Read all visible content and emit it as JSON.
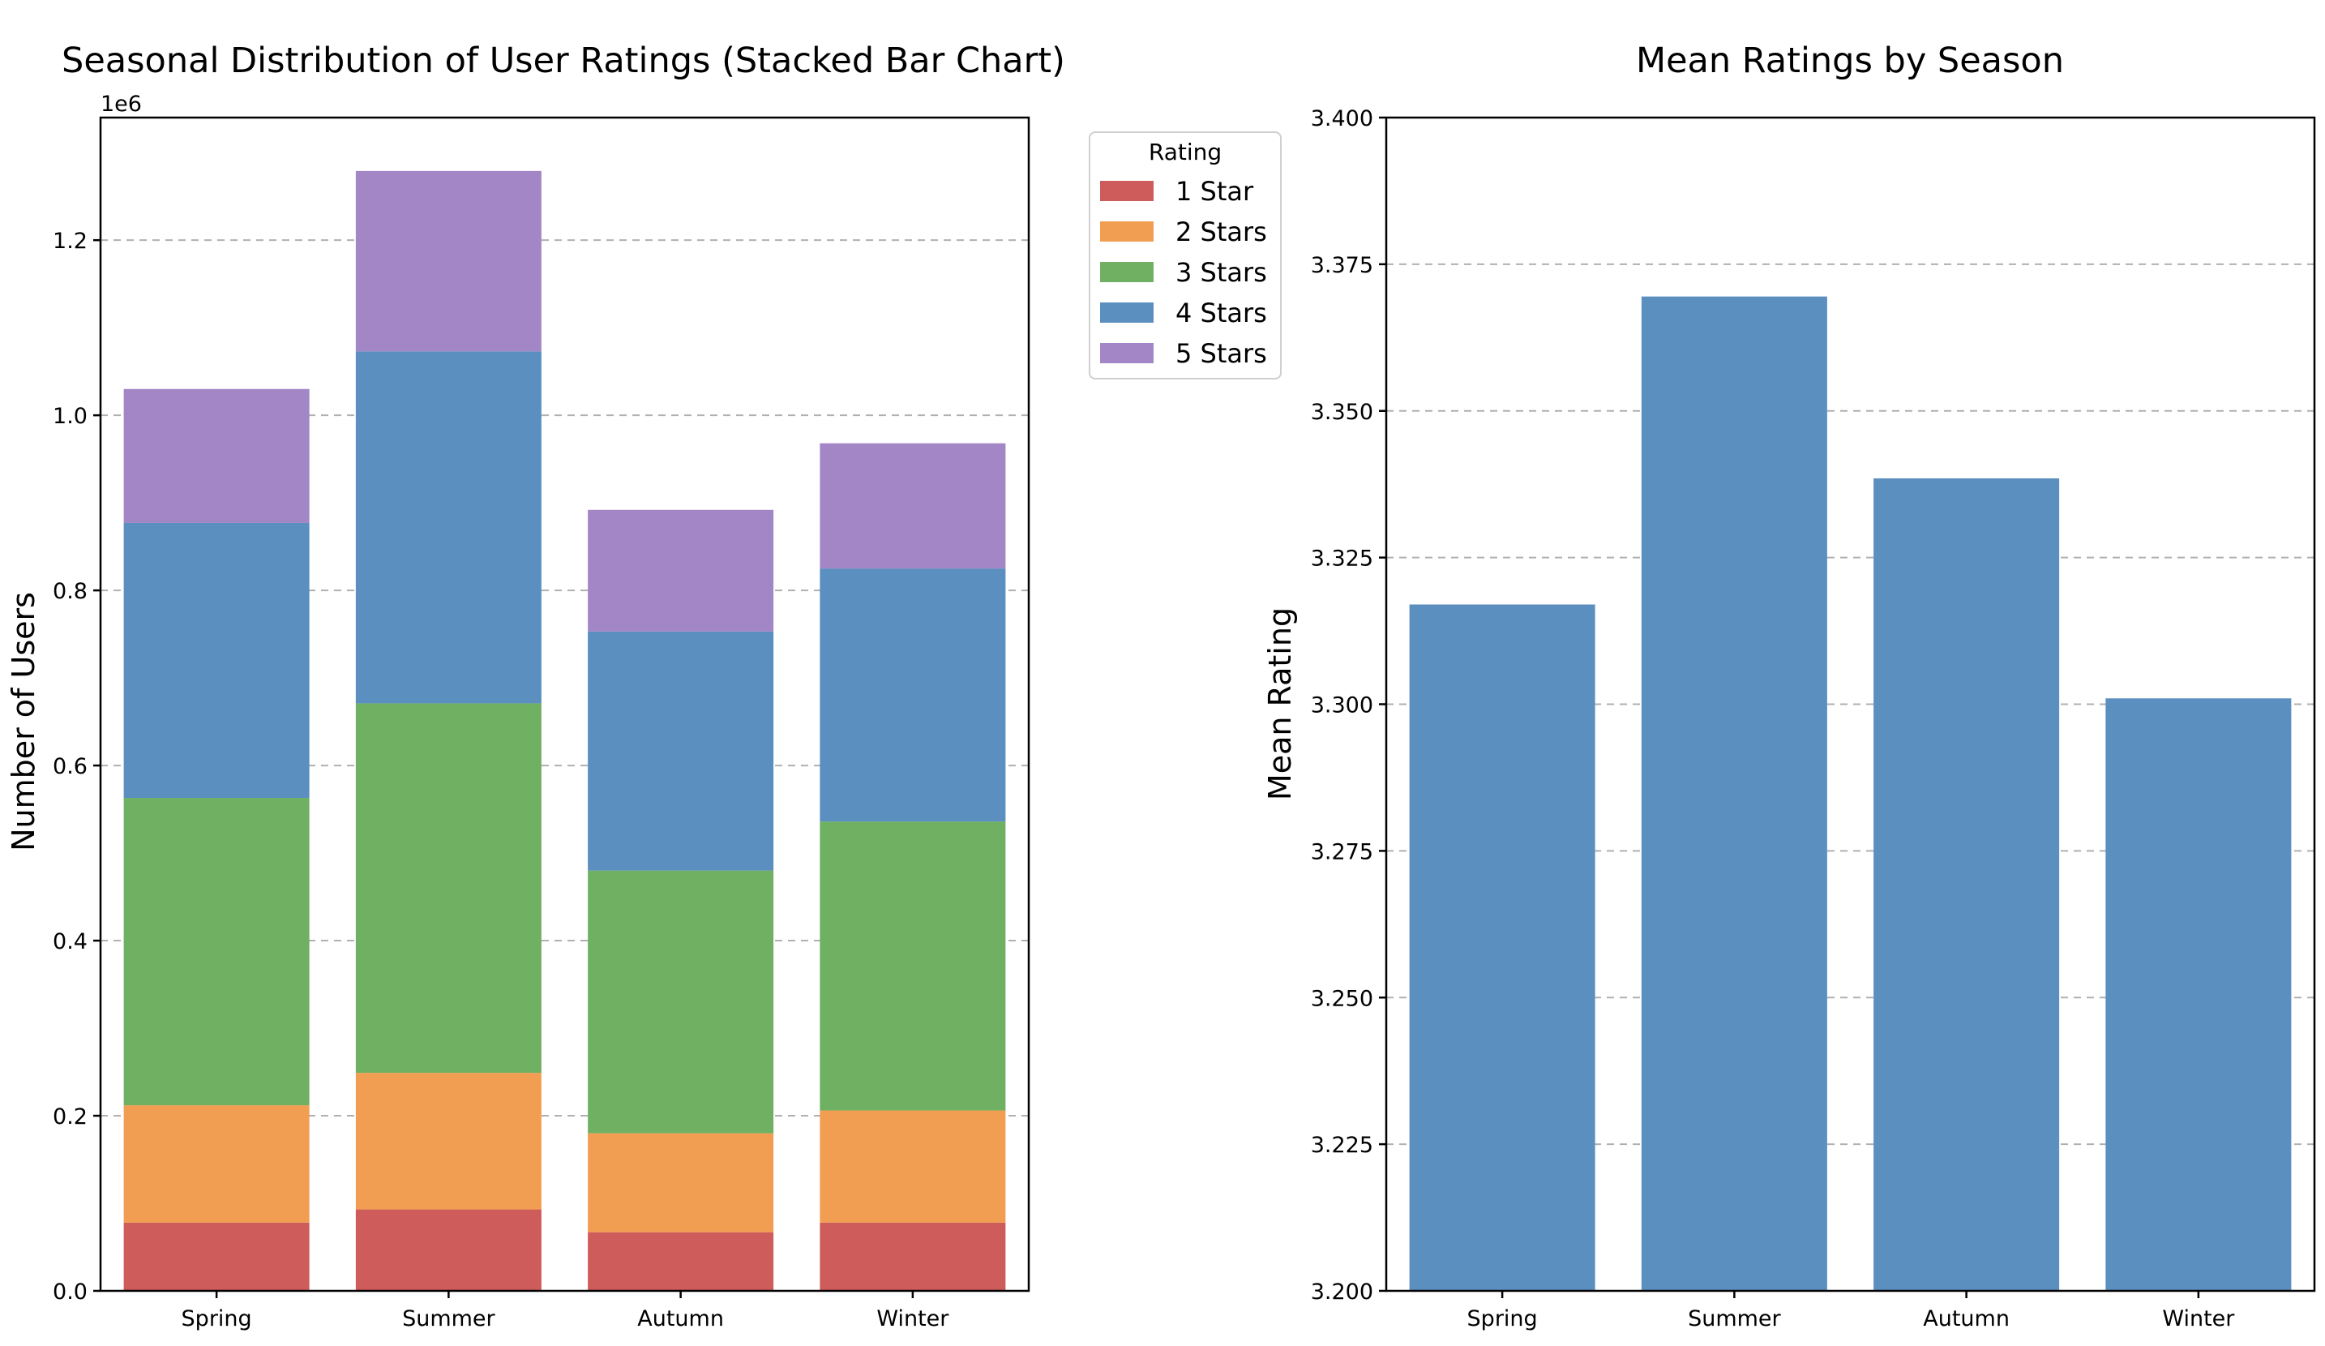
{
  "chart_data": [
    {
      "type": "bar",
      "stacked": true,
      "title": "Seasonal Distribution of User Ratings (Stacked Bar Chart)",
      "xlabel": "",
      "ylabel": "Number of Users",
      "offset_text": "1e6",
      "categories": [
        "Spring",
        "Summer",
        "Autumn",
        "Winter"
      ],
      "ylim": [
        0,
        1340000
      ],
      "yticks": [
        0,
        200000,
        400000,
        600000,
        800000,
        1000000,
        1200000
      ],
      "ytick_labels": [
        "0.0",
        "0.2",
        "0.4",
        "0.6",
        "0.8",
        "1.0",
        "1.2"
      ],
      "grid": "y-dashed",
      "legend": {
        "title": "Rating",
        "placement": "outside-right-top"
      },
      "series": [
        {
          "name": "1 Star",
          "color": "#cd5c5a",
          "values": [
            78000,
            93000,
            67000,
            78000
          ]
        },
        {
          "name": "2 Stars",
          "color": "#f29e52",
          "values": [
            134000,
            156000,
            113000,
            128000
          ]
        },
        {
          "name": "3 Stars",
          "color": "#6fb062",
          "values": [
            351000,
            422000,
            300000,
            330000
          ]
        },
        {
          "name": "4 Stars",
          "color": "#5b8fc0",
          "values": [
            314000,
            402000,
            273000,
            289000
          ]
        },
        {
          "name": "5 Stars",
          "color": "#a386c6",
          "values": [
            153000,
            206000,
            139000,
            143000
          ]
        }
      ]
    },
    {
      "type": "bar",
      "title": "Mean Ratings by Season",
      "xlabel": "",
      "ylabel": "Mean Rating",
      "categories": [
        "Spring",
        "Summer",
        "Autumn",
        "Winter"
      ],
      "values": [
        3.317,
        3.3695,
        3.3385,
        3.301
      ],
      "color": "#5b8fc0",
      "ylim": [
        3.2,
        3.4
      ],
      "yticks": [
        3.2,
        3.225,
        3.25,
        3.275,
        3.3,
        3.325,
        3.35,
        3.375,
        3.4
      ],
      "ytick_labels": [
        "3.200",
        "3.225",
        "3.250",
        "3.275",
        "3.300",
        "3.325",
        "3.350",
        "3.375",
        "3.400"
      ],
      "grid": "y-dashed"
    }
  ]
}
